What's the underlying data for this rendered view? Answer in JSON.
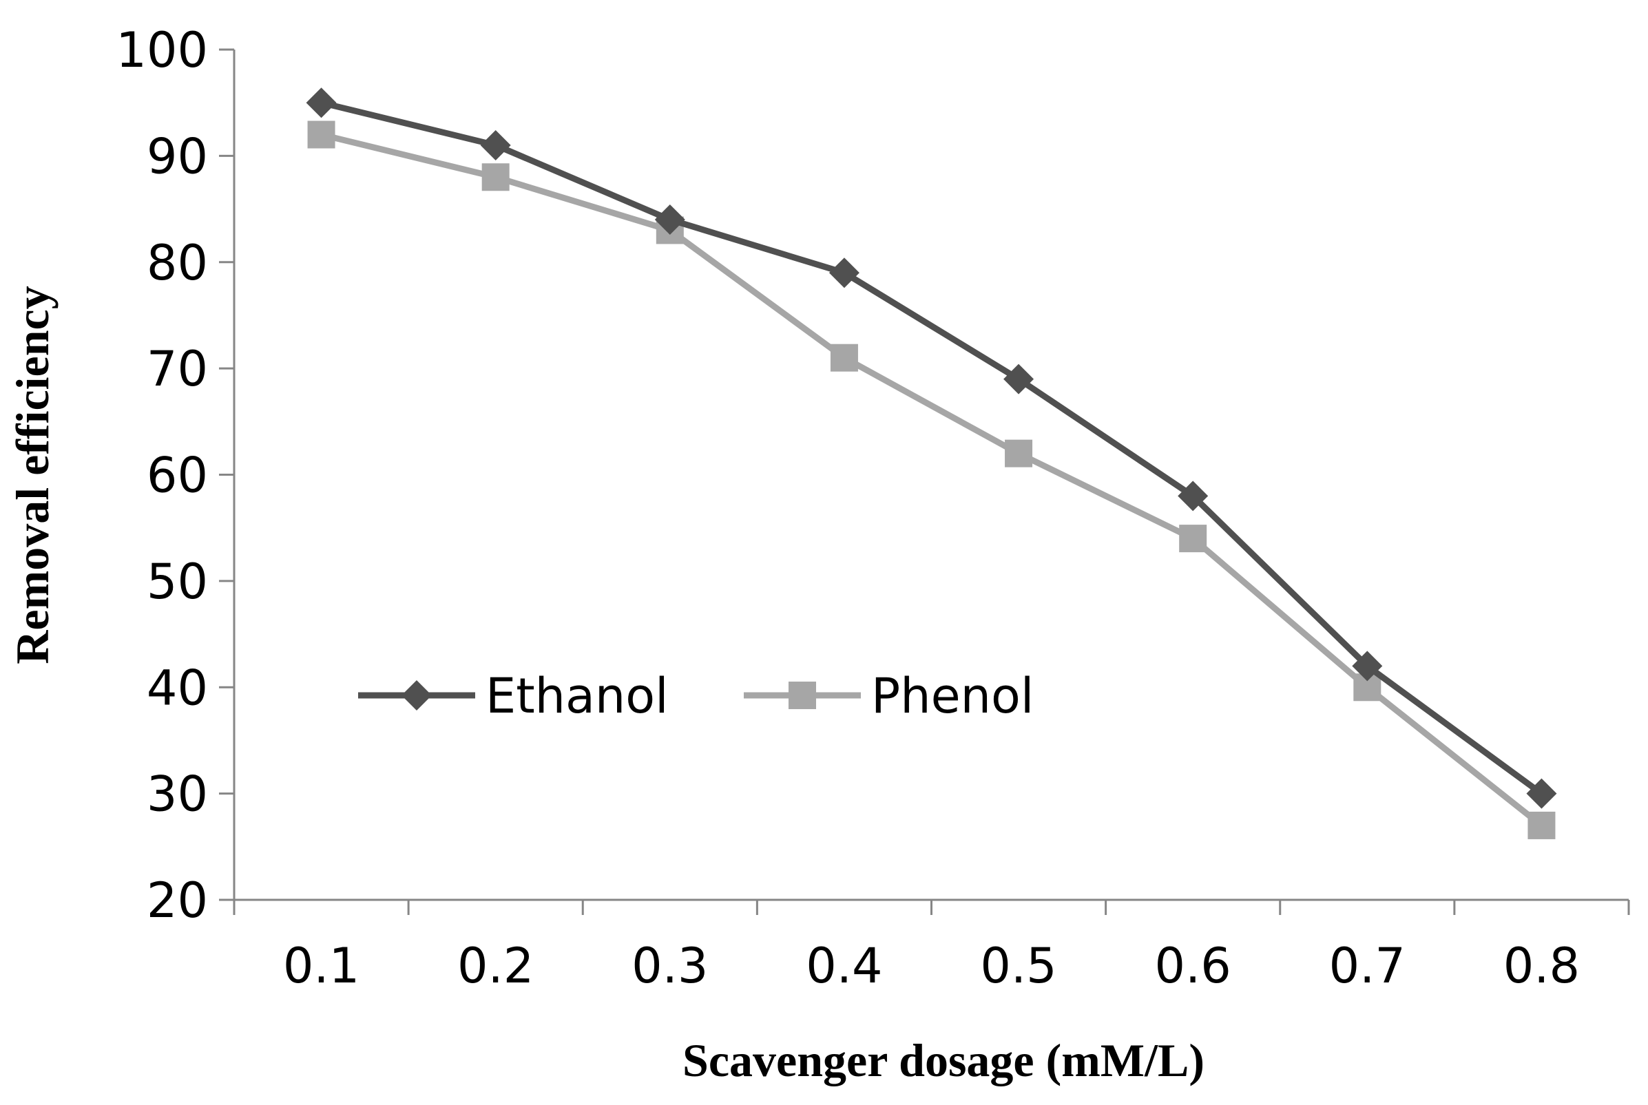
{
  "chart_data": {
    "type": "line",
    "title": "",
    "xlabel": "Scavenger dosage (mM/L)",
    "ylabel": "Removal efficiency",
    "categories": [
      "0.1",
      "0.2",
      "0.3",
      "0.4",
      "0.5",
      "0.6",
      "0.7",
      "0.8"
    ],
    "ylim": [
      20,
      100
    ],
    "yticks": [
      "20",
      "30",
      "40",
      "50",
      "60",
      "70",
      "80",
      "90",
      "100"
    ],
    "grid": false,
    "legend_position": "center-left",
    "series": [
      {
        "name": "Ethanol",
        "color": "#505050",
        "marker": "diamond",
        "values": [
          95,
          91,
          84,
          79,
          69,
          58,
          42,
          30
        ]
      },
      {
        "name": "Phenol",
        "color": "#a6a6a6",
        "marker": "square",
        "values": [
          92,
          88,
          83,
          71,
          62,
          54,
          40,
          27
        ]
      }
    ]
  }
}
